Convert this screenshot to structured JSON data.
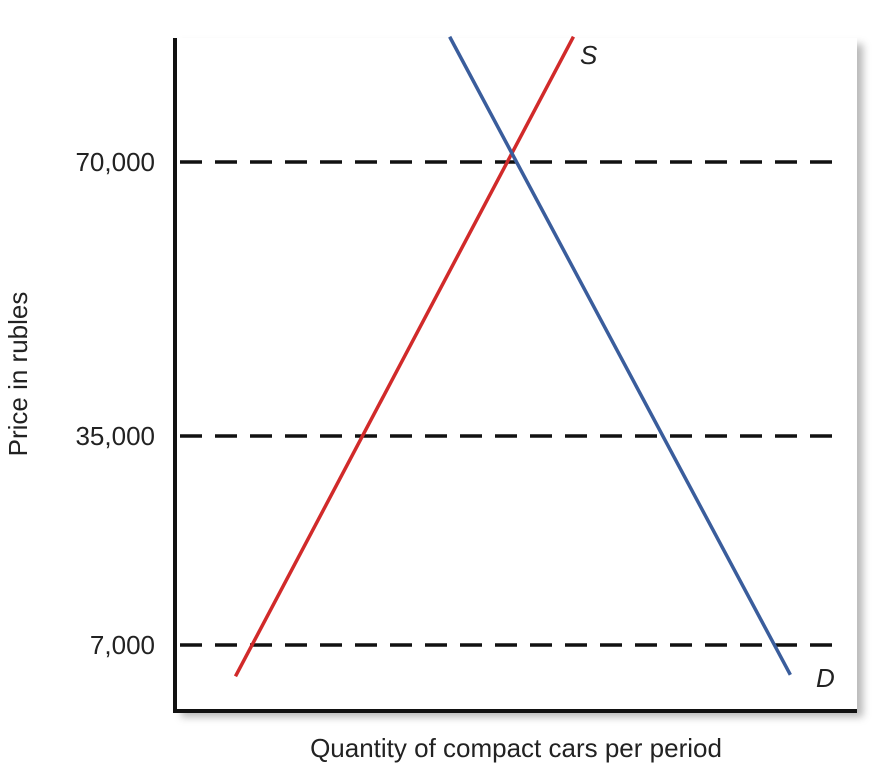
{
  "chart_data": {
    "type": "line",
    "title": "",
    "xlabel": "Quantity of compact cars per period",
    "ylabel": "Price in rubles",
    "yticks": [
      {
        "value": 70000,
        "label": "70,000"
      },
      {
        "value": 35000,
        "label": "35,000"
      },
      {
        "value": 7000,
        "label": "7,000"
      }
    ],
    "reference_lines": [
      70000,
      35000,
      7000
    ],
    "ylim": [
      2000,
      80000
    ],
    "xlim": [
      0,
      1
    ],
    "grid": false,
    "series": [
      {
        "name": "S",
        "color": "#d12a2a",
        "points": [
          [
            0.086,
            2800
          ],
          [
            0.583,
            86000
          ]
        ]
      },
      {
        "name": "D",
        "color": "#3a5d9c",
        "points": [
          [
            0.401,
            86000
          ],
          [
            0.902,
            3000
          ]
        ]
      }
    ]
  },
  "colors": {
    "supply": "#d12a2a",
    "demand": "#3a5d9c",
    "axis": "#111111",
    "reference_line": "#111111"
  }
}
